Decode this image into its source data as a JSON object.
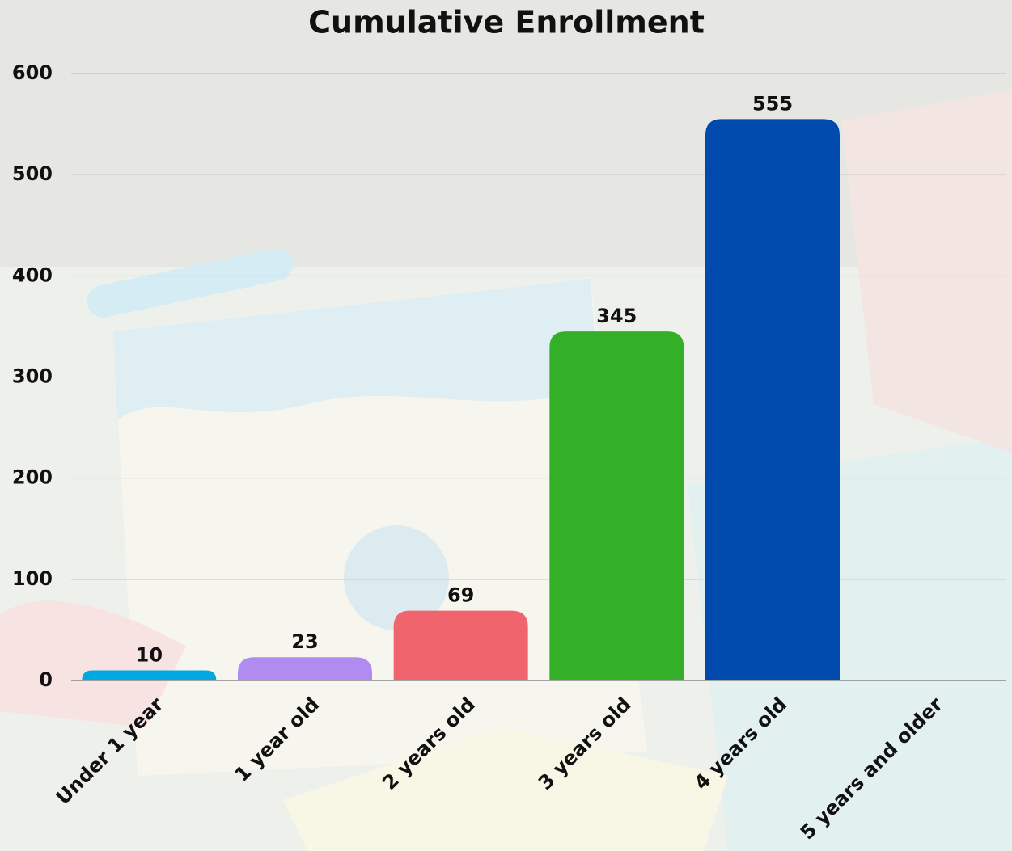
{
  "chart_data": {
    "type": "bar",
    "title": "Cumulative Enrollment",
    "categories": [
      "Under 1 year",
      "1 year old",
      "2 years old",
      "3 years old",
      "4 years old",
      "5 years and older"
    ],
    "values": [
      10,
      23,
      69,
      345,
      555,
      null
    ],
    "colors": [
      "#00a9e0",
      "#b08cf0",
      "#f0646e",
      "#33b027",
      "#004aad",
      null
    ],
    "ylim": [
      0,
      600
    ],
    "yticks": [
      0,
      100,
      200,
      300,
      400,
      500,
      600
    ],
    "grid": true
  }
}
